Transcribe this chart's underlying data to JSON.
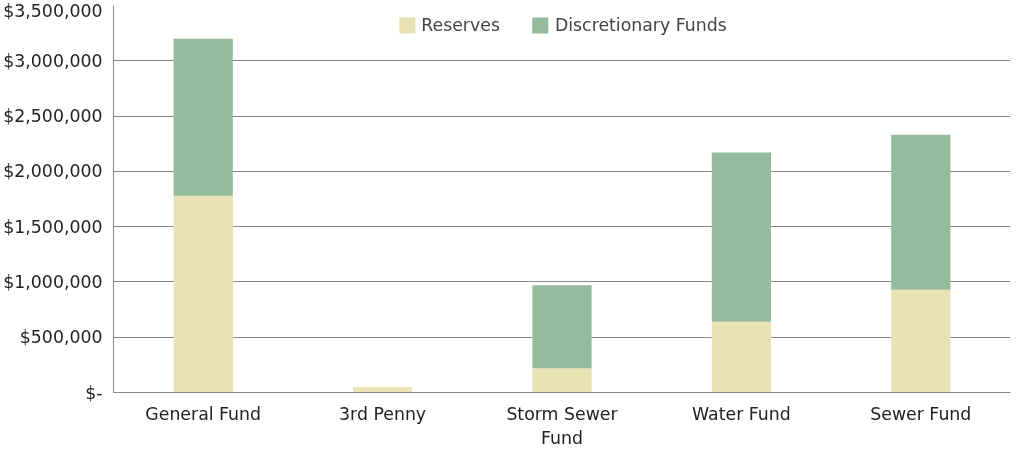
{
  "chart_data": {
    "type": "bar",
    "stacked": true,
    "categories": [
      "General Fund",
      "3rd Penny",
      "Storm Sewer Fund",
      "Water Fund",
      "Sewer Fund"
    ],
    "series": [
      {
        "name": "Reserves",
        "color": "#e8e2b4",
        "values": [
          1780000,
          50000,
          220000,
          640000,
          930000
        ]
      },
      {
        "name": "Discretionary Funds",
        "color": "#93bb9c",
        "values": [
          1420000,
          0,
          750000,
          1530000,
          1400000
        ]
      }
    ],
    "ylim": [
      0,
      3500000
    ],
    "yticks": [
      {
        "value": 0,
        "label": "$-"
      },
      {
        "value": 500000,
        "label": "$500,000"
      },
      {
        "value": 1000000,
        "label": "$1,000,000"
      },
      {
        "value": 1500000,
        "label": "$1,500,000"
      },
      {
        "value": 2000000,
        "label": "$2,000,000"
      },
      {
        "value": 2500000,
        "label": "$2,500,000"
      },
      {
        "value": 3000000,
        "label": "$3,000,000"
      },
      {
        "value": 3500000,
        "label": "$3,500,000"
      }
    ],
    "grid": "y",
    "legend": "top"
  }
}
